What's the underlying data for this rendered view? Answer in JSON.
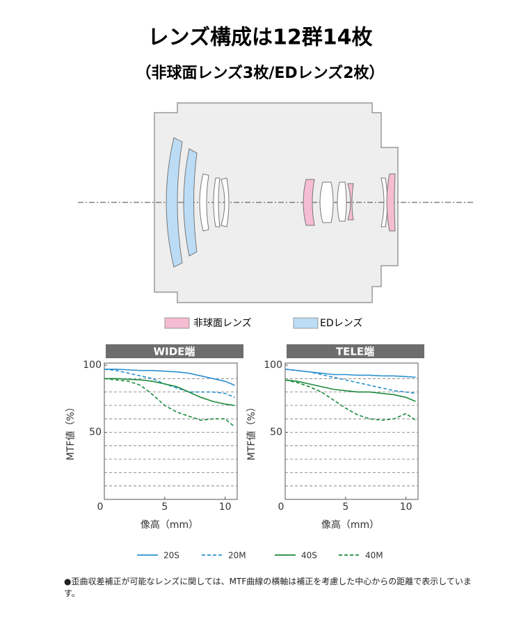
{
  "title": "レンズ構成は12群14枚",
  "subtitle": "（非球面レンズ3枚/EDレンズ2枚）",
  "lens_legend": [
    {
      "name": "非球面レンズ",
      "color": "#f5bcd2"
    },
    {
      "name": "EDレンズ",
      "color": "#bcdcf5"
    }
  ],
  "legend": [
    {
      "name": "20S",
      "color": "#2a90d0",
      "dashed": false
    },
    {
      "name": "20M",
      "color": "#2a90d0",
      "dashed": true
    },
    {
      "name": "40S",
      "color": "#1b8a3c",
      "dashed": false
    },
    {
      "name": "40M",
      "color": "#1b8a3c",
      "dashed": true
    }
  ],
  "note": "●歪曲収差補正が可能なレンズに関しては、MTF曲線の横軸は補正を考慮した中心からの距離で表示しています。",
  "chart_data": [
    {
      "type": "line",
      "title": "WIDE端",
      "x_label": "像高（mm）",
      "y_label": "MTF値（%）",
      "xlim": [
        0,
        11
      ],
      "ylim": [
        0,
        100
      ],
      "xticks": [
        0,
        5,
        10
      ],
      "yticks": [
        50,
        100
      ],
      "grid_lines": [
        10,
        20,
        30,
        40,
        50,
        60,
        70,
        80,
        90
      ],
      "x": [
        0,
        1,
        2,
        3,
        4,
        5,
        6,
        7,
        8,
        9,
        10,
        10.8
      ],
      "series": [
        {
          "values": [
            97,
            97,
            96.5,
            96,
            96,
            95.5,
            95,
            94,
            92,
            90,
            88,
            85
          ]
        },
        {
          "values": [
            97,
            96,
            94,
            92,
            90,
            86,
            83,
            80,
            80,
            80,
            79,
            76
          ]
        },
        {
          "values": [
            90,
            90,
            89.5,
            89,
            88,
            86,
            84,
            80,
            76,
            73,
            71,
            70
          ]
        },
        {
          "values": [
            90,
            89,
            88,
            85,
            78,
            70,
            65,
            62,
            59,
            60,
            60,
            54
          ]
        }
      ]
    },
    {
      "type": "line",
      "title": "TELE端",
      "x_label": "像高（mm）",
      "y_label": "MTF値（%）",
      "xlim": [
        0,
        11
      ],
      "ylim": [
        0,
        100
      ],
      "xticks": [
        0,
        5,
        10
      ],
      "yticks": [
        50,
        100
      ],
      "grid_lines": [
        10,
        20,
        30,
        40,
        50,
        60,
        70,
        80,
        90
      ],
      "x": [
        0,
        1,
        2,
        3,
        4,
        5,
        6,
        7,
        8,
        9,
        10,
        10.8
      ],
      "series": [
        {
          "values": [
            97,
            96,
            95,
            94,
            93,
            93,
            92.5,
            92.5,
            92,
            92,
            91.5,
            91
          ]
        },
        {
          "values": [
            97,
            96,
            95,
            93,
            91,
            89,
            87,
            85,
            83,
            81,
            80,
            79
          ]
        },
        {
          "values": [
            89,
            88,
            86,
            84,
            82,
            81,
            80,
            80,
            79,
            78,
            76,
            73
          ]
        },
        {
          "values": [
            89,
            87,
            84,
            80,
            74,
            68,
            63,
            60,
            59,
            60,
            64,
            59
          ]
        }
      ]
    }
  ]
}
